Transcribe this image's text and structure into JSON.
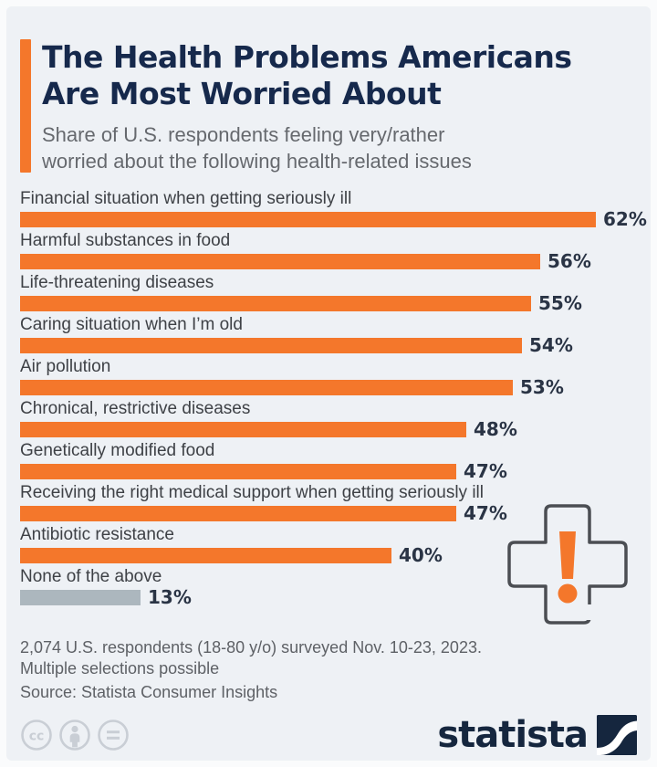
{
  "header": {
    "title_lines": [
      "The Health Problems Americans",
      "Are Most Worried About"
    ],
    "subtitle_lines": [
      "Share of U.S. respondents feeling very/rather",
      "worried about the following health-related issues"
    ]
  },
  "chart_data": {
    "type": "bar",
    "orientation": "horizontal",
    "title": "The Health Problems Americans Are Most Worried About",
    "subtitle": "Share of U.S. respondents feeling very/rather worried about the following health-related issues",
    "unit": "%",
    "xlim": [
      0,
      65
    ],
    "grid": false,
    "value_labels": true,
    "categories": [
      "Financial situation when getting seriously ill",
      "Harmful substances in food",
      "Life-threatening diseases",
      "Caring situation when I’m old",
      "Air pollution",
      "Chronical, restrictive diseases",
      "Genetically modified food",
      "Receiving the right medical support when getting seriously ill",
      "Antibiotic resistance",
      "None of the above"
    ],
    "values": [
      62,
      56,
      55,
      54,
      53,
      48,
      47,
      47,
      40,
      13
    ],
    "bar_colors": [
      "#F4772B",
      "#F4772B",
      "#F4772B",
      "#F4772B",
      "#F4772B",
      "#F4772B",
      "#F4772B",
      "#F4772B",
      "#F4772B",
      "#ACB7BE"
    ]
  },
  "footer": {
    "note_lines": [
      "2,074 U.S. respondents (18-80 y/o) surveyed Nov. 10-23, 2023.",
      "Multiple selections possible"
    ],
    "source": "Source: Statista Consumer Insights"
  },
  "branding": {
    "logo_text": "statista",
    "license_icons": [
      "cc-icon",
      "attribution-icon",
      "no-derivatives-icon"
    ]
  },
  "colors": {
    "bg": "#EEF1F5",
    "frame": "#FAFBFC",
    "orange": "#F4772B",
    "navy": "#16294C",
    "subtitle_gray": "#66696E",
    "label_gray": "#3E4146",
    "value_navy": "#2A3445",
    "bar_gray": "#ACB7BE",
    "footer_gray": "#5E6166",
    "cross_gray": "#4B4E53",
    "cc_gray": "#C9CED5",
    "logo_navy": "#15263E"
  }
}
